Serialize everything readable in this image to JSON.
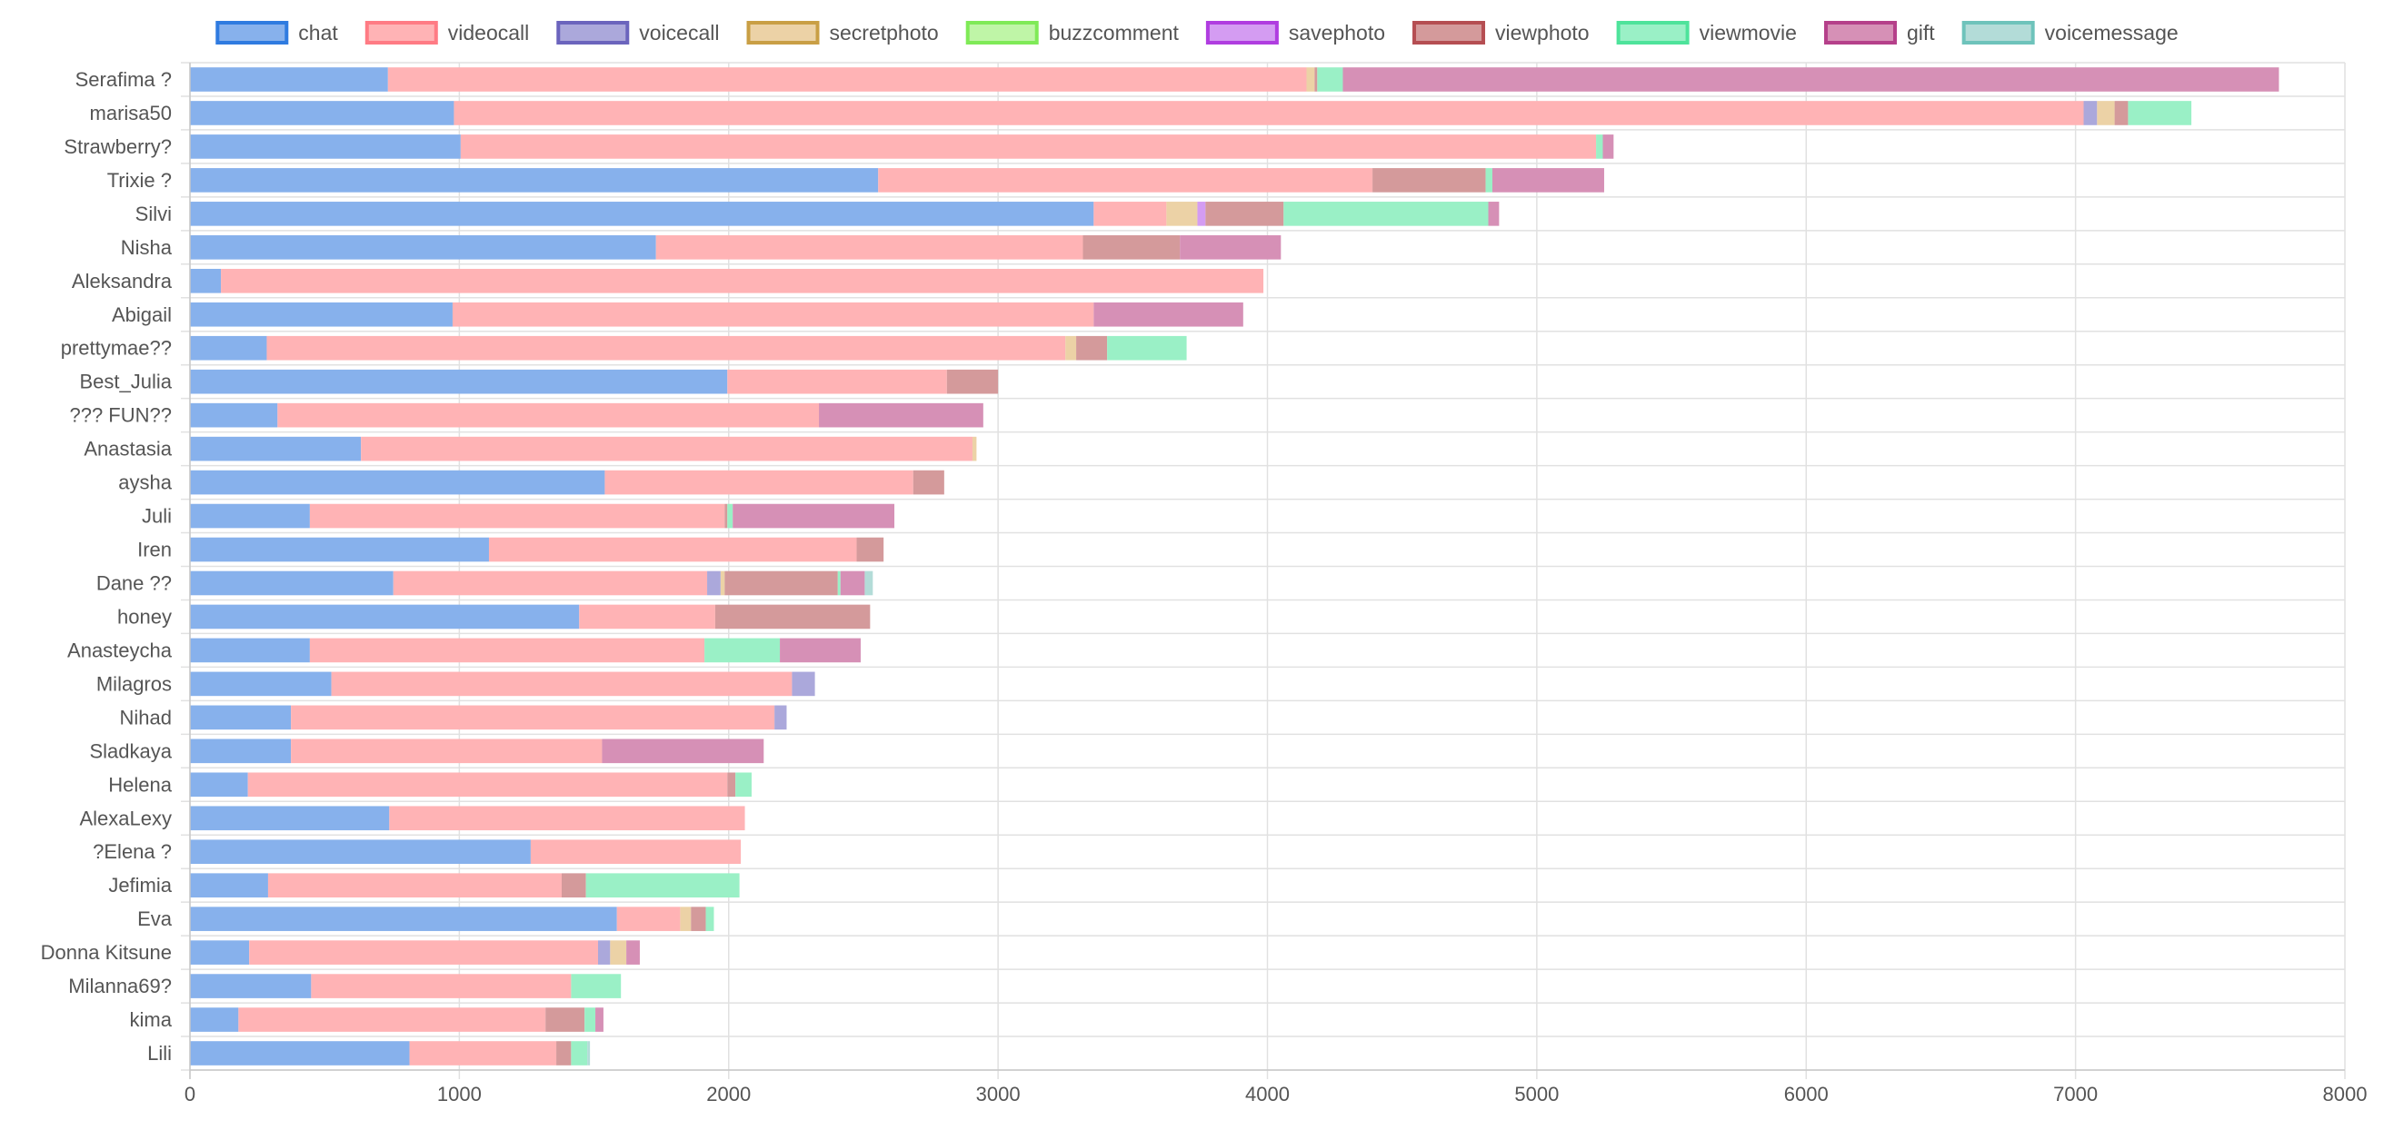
{
  "chart_data": {
    "type": "bar",
    "orientation": "horizontal",
    "stacked": true,
    "title": "",
    "xlabel": "",
    "ylabel": "",
    "xlim": [
      0,
      8000
    ],
    "x_ticks": [
      0,
      1000,
      2000,
      3000,
      4000,
      5000,
      6000,
      7000,
      8000
    ],
    "grid": true,
    "legend_position": "top",
    "categories": [
      "Serafima ?",
      "marisa50",
      "Strawberry?",
      "Trixie ?",
      "Silvi",
      "Nisha",
      "Aleksandra",
      "Abigail",
      "prettymae??",
      "Best_Julia",
      "??? FUN??",
      "Anastasia",
      "aysha",
      "Juli",
      "Iren",
      "Dane ??",
      "honey",
      "Anasteycha",
      "Milagros",
      "Nihad",
      "Sladkaya",
      "Helena",
      "AlexaLexy",
      "?Elena ?",
      "Jefimia",
      "Eva",
      "Donna Kitsune",
      "Milanna69?",
      "kima",
      "Lili"
    ],
    "series": [
      {
        "name": "chat",
        "fill": "#87b1ec",
        "border": "#2f7be0",
        "values": [
          735,
          980,
          1005,
          2555,
          3355,
          1730,
          115,
          975,
          285,
          1995,
          325,
          635,
          1540,
          445,
          1110,
          755,
          1445,
          445,
          525,
          375,
          375,
          215,
          740,
          1265,
          290,
          1585,
          220,
          450,
          180,
          815
        ]
      },
      {
        "name": "videocall",
        "fill": "#ffb3b5",
        "border": "#ff7b84",
        "values": [
          3410,
          6050,
          4215,
          1835,
          270,
          1585,
          3870,
          2380,
          2965,
          815,
          2010,
          2270,
          1145,
          1540,
          1365,
          1165,
          505,
          1465,
          1710,
          1795,
          1155,
          1780,
          1320,
          780,
          1090,
          235,
          1295,
          965,
          1140,
          545
        ]
      },
      {
        "name": "voicecall",
        "fill": "#aba8db",
        "border": "#6b64bd",
        "values": [
          0,
          50,
          0,
          0,
          0,
          0,
          0,
          0,
          0,
          0,
          0,
          0,
          0,
          0,
          0,
          50,
          0,
          0,
          85,
          45,
          0,
          0,
          0,
          0,
          0,
          0,
          45,
          0,
          0,
          0
        ]
      },
      {
        "name": "secretphoto",
        "fill": "#ecd2a6",
        "border": "#c99f45",
        "values": [
          30,
          65,
          0,
          0,
          115,
          0,
          0,
          0,
          40,
          0,
          0,
          15,
          0,
          0,
          0,
          15,
          0,
          0,
          0,
          0,
          0,
          0,
          0,
          0,
          0,
          40,
          60,
          0,
          0,
          0
        ]
      },
      {
        "name": "buzzcomment",
        "fill": "#bff5a7",
        "border": "#7fea57",
        "values": [
          0,
          0,
          0,
          0,
          0,
          0,
          0,
          0,
          0,
          0,
          0,
          0,
          0,
          0,
          0,
          0,
          0,
          0,
          0,
          0,
          0,
          0,
          0,
          0,
          0,
          0,
          0,
          0,
          0,
          0
        ]
      },
      {
        "name": "savephoto",
        "fill": "#d49cf2",
        "border": "#b03de0",
        "values": [
          0,
          0,
          0,
          0,
          30,
          0,
          0,
          0,
          0,
          0,
          0,
          0,
          0,
          0,
          0,
          0,
          0,
          0,
          0,
          0,
          0,
          0,
          0,
          0,
          0,
          0,
          0,
          0,
          0,
          0
        ]
      },
      {
        "name": "viewphoto",
        "fill": "#d49a9b",
        "border": "#b54e52",
        "values": [
          10,
          50,
          0,
          420,
          290,
          360,
          0,
          0,
          115,
          190,
          0,
          0,
          115,
          10,
          100,
          420,
          575,
          0,
          0,
          0,
          0,
          30,
          0,
          0,
          90,
          55,
          0,
          0,
          145,
          55
        ]
      },
      {
        "name": "viewmovie",
        "fill": "#9af0c6",
        "border": "#4ee39b",
        "values": [
          95,
          235,
          25,
          25,
          760,
          0,
          0,
          0,
          295,
          0,
          0,
          0,
          0,
          20,
          0,
          10,
          0,
          280,
          0,
          0,
          0,
          60,
          0,
          0,
          570,
          30,
          0,
          185,
          40,
          60
        ]
      },
      {
        "name": "gift",
        "fill": "#d690b6",
        "border": "#b5408a",
        "values": [
          3475,
          0,
          40,
          415,
          40,
          375,
          0,
          555,
          0,
          0,
          610,
          0,
          0,
          600,
          0,
          90,
          0,
          300,
          0,
          0,
          600,
          0,
          0,
          0,
          0,
          0,
          50,
          0,
          30,
          0
        ]
      },
      {
        "name": "voicemessage",
        "fill": "#b3dcd8",
        "border": "#6ec3bb",
        "values": [
          0,
          0,
          0,
          0,
          0,
          0,
          0,
          0,
          0,
          0,
          0,
          0,
          0,
          0,
          0,
          30,
          0,
          0,
          0,
          0,
          0,
          0,
          0,
          0,
          0,
          0,
          0,
          0,
          0,
          10
        ]
      }
    ]
  }
}
